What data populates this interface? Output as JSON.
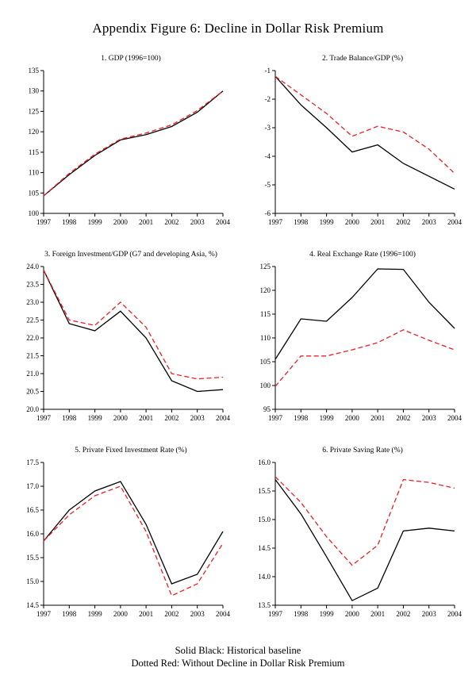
{
  "page": {
    "title": "Appendix Figure 6: Decline in Dollar Risk Premium",
    "legend": {
      "line1": "Solid Black: Historical baseline",
      "line2": "Dotted Red: Without Decline in Dollar Risk Premium"
    },
    "colors": {
      "baseline": "#000000",
      "counterfactual": "#ee1c25"
    }
  },
  "chart_data": [
    {
      "type": "line",
      "title": "1. GDP (1996=100)",
      "x": [
        1997,
        1998,
        1999,
        2000,
        2001,
        2002,
        2003,
        2004
      ],
      "ylim": [
        100,
        135
      ],
      "ytick_step": 5,
      "ytick_decimals": 0,
      "grid": false,
      "legend_position": "none",
      "series": [
        {
          "name": "Historical baseline",
          "style": "solid",
          "color": "#000000",
          "values": [
            104.3,
            109.5,
            114.2,
            118.0,
            119.3,
            121.3,
            124.8,
            130.0
          ]
        },
        {
          "name": "Without Decline in Dollar Risk Premium",
          "style": "dashed",
          "color": "#ee1c25",
          "values": [
            104.3,
            109.8,
            114.5,
            118.2,
            119.7,
            121.7,
            125.2,
            130.0
          ]
        }
      ]
    },
    {
      "type": "line",
      "title": "2. Trade Balance/GDP (%)",
      "x": [
        1997,
        1998,
        1999,
        2000,
        2001,
        2002,
        2003,
        2004
      ],
      "ylim": [
        -6,
        -1
      ],
      "ytick_step": 1,
      "ytick_decimals": 0,
      "grid": false,
      "legend_position": "none",
      "series": [
        {
          "name": "Historical baseline",
          "style": "solid",
          "color": "#000000",
          "values": [
            -1.2,
            -2.2,
            -3.0,
            -3.85,
            -3.6,
            -4.25,
            -4.7,
            -5.15
          ]
        },
        {
          "name": "Without Decline in Dollar Risk Premium",
          "style": "dashed",
          "color": "#ee1c25",
          "values": [
            -1.2,
            -1.85,
            -2.5,
            -3.3,
            -2.95,
            -3.15,
            -3.75,
            -4.6
          ]
        }
      ]
    },
    {
      "type": "line",
      "title": "3. Foreign Investment/GDP (G7 and developing Asia, %)",
      "x": [
        1997,
        1998,
        1999,
        2000,
        2001,
        2002,
        2003,
        2004
      ],
      "ylim": [
        20.0,
        24.0
      ],
      "ytick_step": 0.5,
      "ytick_decimals": 1,
      "grid": false,
      "legend_position": "none",
      "series": [
        {
          "name": "Historical baseline",
          "style": "solid",
          "color": "#000000",
          "values": [
            23.9,
            22.4,
            22.2,
            22.75,
            22.0,
            20.8,
            20.5,
            20.55
          ]
        },
        {
          "name": "Without Decline in Dollar Risk Premium",
          "style": "dashed",
          "color": "#ee1c25",
          "values": [
            23.9,
            22.5,
            22.35,
            23.0,
            22.3,
            21.0,
            20.85,
            20.9
          ]
        }
      ]
    },
    {
      "type": "line",
      "title": "4. Real Exchange Rate (1996=100)",
      "x": [
        1997,
        1998,
        1999,
        2000,
        2001,
        2002,
        2003,
        2004
      ],
      "ylim": [
        95,
        125
      ],
      "ytick_step": 5,
      "ytick_decimals": 0,
      "grid": false,
      "legend_position": "none",
      "series": [
        {
          "name": "Historical baseline",
          "style": "solid",
          "color": "#000000",
          "values": [
            105.5,
            114.0,
            113.5,
            118.5,
            124.5,
            124.4,
            117.5,
            112.0
          ]
        },
        {
          "name": "Without Decline in Dollar Risk Premium",
          "style": "dashed",
          "color": "#ee1c25",
          "values": [
            99.8,
            106.2,
            106.2,
            107.5,
            109.0,
            111.7,
            109.5,
            107.5
          ]
        }
      ]
    },
    {
      "type": "line",
      "title": "5. Private Fixed Investment Rate (%)",
      "x": [
        1997,
        1998,
        1999,
        2000,
        2001,
        2002,
        2003,
        2004
      ],
      "ylim": [
        14.5,
        17.5
      ],
      "ytick_step": 0.5,
      "ytick_decimals": 1,
      "grid": false,
      "legend_position": "none",
      "series": [
        {
          "name": "Historical baseline",
          "style": "solid",
          "color": "#000000",
          "values": [
            15.85,
            16.5,
            16.9,
            17.1,
            16.2,
            14.95,
            15.15,
            16.05
          ]
        },
        {
          "name": "Without Decline in Dollar Risk Premium",
          "style": "dashed",
          "color": "#ee1c25",
          "values": [
            15.85,
            16.4,
            16.8,
            17.0,
            16.05,
            14.7,
            14.95,
            15.8
          ]
        }
      ]
    },
    {
      "type": "line",
      "title": "6. Private Saving Rate (%)",
      "x": [
        1997,
        1998,
        1999,
        2000,
        2001,
        2002,
        2003,
        2004
      ],
      "ylim": [
        13.5,
        16.0
      ],
      "ytick_step": 0.5,
      "ytick_decimals": 1,
      "grid": false,
      "legend_position": "none",
      "series": [
        {
          "name": "Historical baseline",
          "style": "solid",
          "color": "#000000",
          "values": [
            15.7,
            15.1,
            14.35,
            13.58,
            13.8,
            14.8,
            14.85,
            14.8
          ]
        },
        {
          "name": "Without Decline in Dollar Risk Premium",
          "style": "dashed",
          "color": "#ee1c25",
          "values": [
            15.75,
            15.3,
            14.7,
            14.2,
            14.55,
            15.7,
            15.65,
            15.55
          ]
        }
      ]
    }
  ]
}
